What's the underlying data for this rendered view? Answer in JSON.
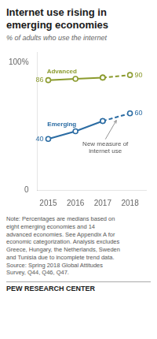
{
  "chart_data": {
    "type": "line",
    "title": "Internet use rising in\nemerging economies",
    "subtitle": "% of adults who use the internet",
    "x": [
      2015,
      2016,
      2017,
      2018
    ],
    "xlim": [
      2014.6,
      2018.6
    ],
    "xticks": [
      2015,
      2016,
      2017,
      2018
    ],
    "ylim": [
      0,
      108
    ],
    "yticks": [
      0,
      {
        "value": 100,
        "label": "100%"
      }
    ],
    "grid": false,
    "series": [
      {
        "name": "Advanced",
        "color": "#8B9B2E",
        "line_style": "solid",
        "marker": "circle",
        "values": [
          86,
          87,
          88,
          null
        ],
        "value_labels": [
          "86",
          null,
          null,
          null
        ]
      },
      {
        "name": "Advanced",
        "color": "#8B9B2E",
        "line_style": "dashed",
        "marker": "circle",
        "values": [
          null,
          null,
          88,
          90
        ],
        "value_labels": [
          null,
          null,
          null,
          "90"
        ]
      },
      {
        "name": "Emerging",
        "color": "#2B6CA3",
        "line_style": "solid",
        "marker": "circle",
        "values": [
          40,
          46,
          54,
          null
        ],
        "value_labels": [
          "40",
          null,
          null,
          null
        ]
      },
      {
        "name": "Emerging",
        "color": "#2B6CA3",
        "line_style": "dashed",
        "marker": "circle",
        "values": [
          null,
          null,
          54,
          60
        ],
        "value_labels": [
          null,
          null,
          null,
          "60"
        ]
      }
    ],
    "annotation": "New measure of\ninternet use",
    "note": "Note: Percentages are medians based on\neight emerging economies and 14\nadvanced economies. See Appendix A for\neconomic categorization. Analysis excludes\nGreece, Hungary, the Netherlands, Sweden\nand Tunisia due to incomplete trend data.\nSource: Spring 2018 Global Attitudes\nSurvey, Q44, Q46, Q47.",
    "footer": "PEW RESEARCH CENTER"
  }
}
